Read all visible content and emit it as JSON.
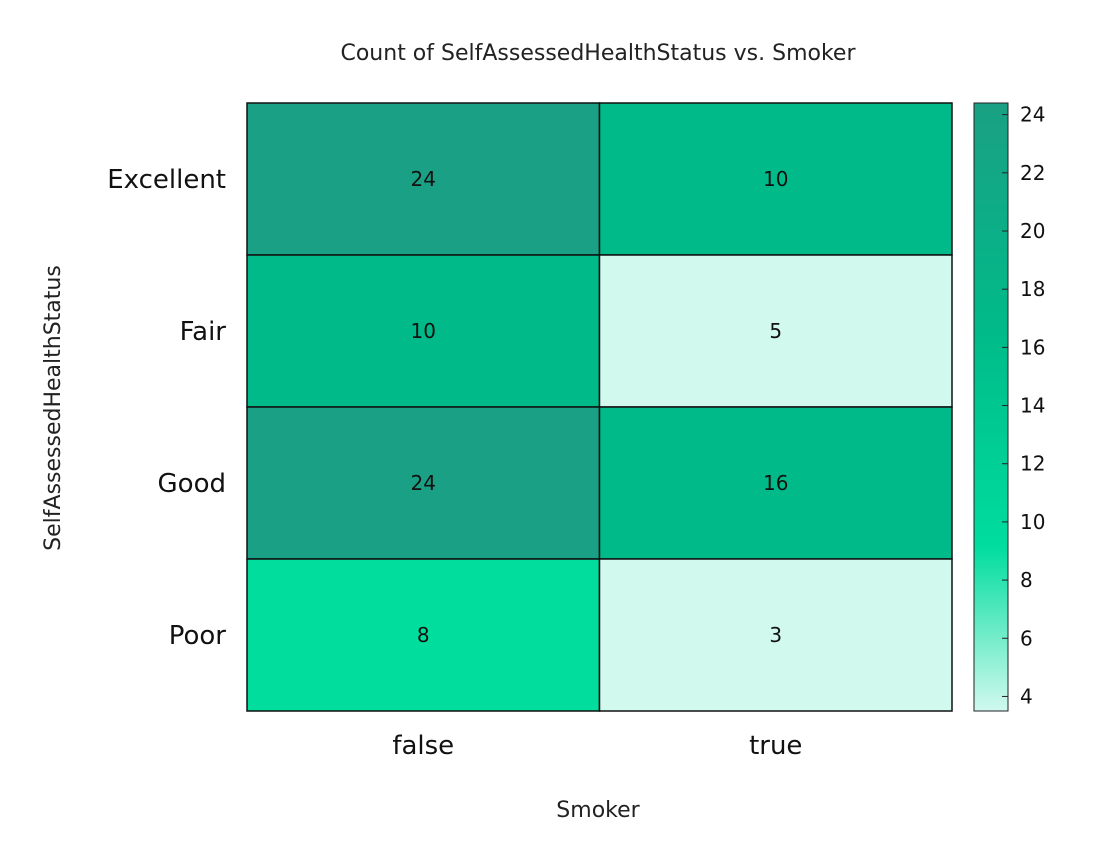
{
  "chart_data": {
    "type": "heatmap",
    "title": "Count of SelfAssessedHealthStatus vs. Smoker",
    "xlabel": "Smoker",
    "ylabel": "SelfAssessedHealthStatus",
    "x_categories": [
      "false",
      "true"
    ],
    "y_categories": [
      "Excellent",
      "Fair",
      "Good",
      "Poor"
    ],
    "values": [
      [
        24,
        10
      ],
      [
        10,
        5
      ],
      [
        24,
        16
      ],
      [
        8,
        3
      ]
    ],
    "colorbar": {
      "min": 3.5,
      "max": 24.4,
      "ticks": [
        4,
        6,
        8,
        10,
        12,
        14,
        16,
        18,
        20,
        22,
        24
      ]
    },
    "colors": {
      "cell_24": "#1aa084",
      "cell_16": "#00ba89",
      "cell_10": "#00bb89",
      "cell_8": "#00dd9d",
      "cell_low": "#d1f9ee",
      "colorbar_top": "#1aa084",
      "colorbar_mid_high": "#00bb89",
      "colorbar_mid": "#00dd9e",
      "colorbar_bottom": "#d1f9ee"
    }
  }
}
